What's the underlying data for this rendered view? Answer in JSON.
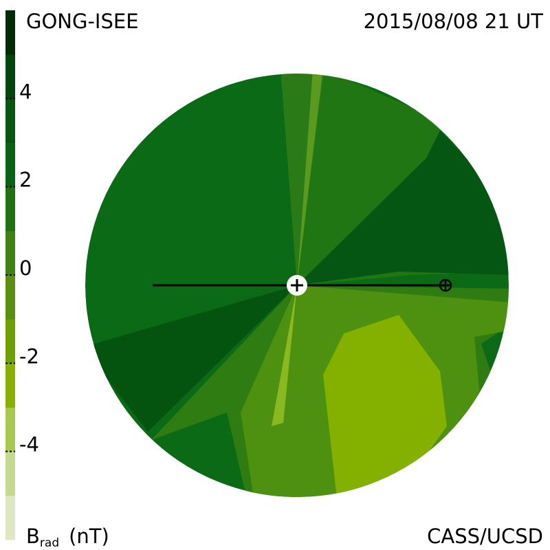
{
  "chart_data": {
    "type": "contour",
    "title": "GONG-ISEE",
    "date": "2015/08/08 21 UT",
    "credit": "CASS/UCSD",
    "colorbar_label": {
      "symbol": "B",
      "subscript": "rad",
      "unit": "(nT)"
    },
    "colorbar": {
      "lim": [
        -6,
        6
      ],
      "ticks": [
        4,
        2,
        0,
        -2,
        -4
      ],
      "colors": [
        "#dde8c2",
        "#c6da8e",
        "#a9c852",
        "#89b000",
        "#6fa000",
        "#5a9012",
        "#3f8214",
        "#1f7212",
        "#066412",
        "#055610",
        "#03460c",
        "#022c08"
      ]
    }
  }
}
